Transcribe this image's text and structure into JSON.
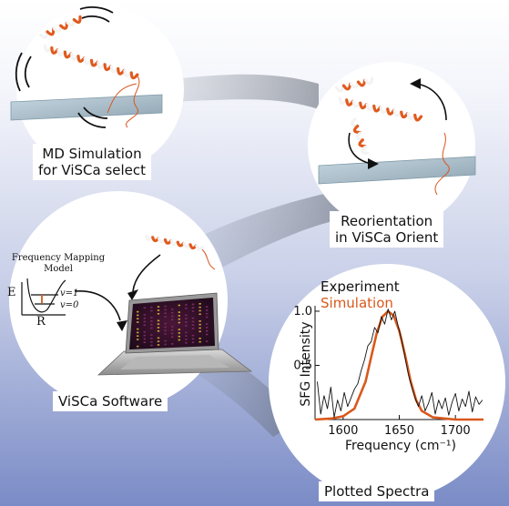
{
  "diagram": {
    "md_simulation": {
      "line1": "MD Simulation",
      "line2": "for ViSCa select"
    },
    "reorientation": {
      "line1": "Reorientation",
      "line2": "in ViSCa Orient"
    },
    "software": {
      "label": "ViSCa Software"
    },
    "spectra": {
      "label": "Plotted Spectra"
    },
    "frequency_mapping": {
      "title_line1": "Frequency Mapping",
      "title_line2": "Model",
      "energy_axis": "E",
      "coordinate_axis": "R",
      "level_v1": "v=1",
      "level_v0": "v=0"
    }
  },
  "colors": {
    "simulation": "#d9581c",
    "experiment": "#111111",
    "helix": "#e05a1e"
  },
  "chart_data": {
    "type": "line",
    "legend": [
      "Experiment",
      "Simulation"
    ],
    "xlabel": "Frequency (cm⁻¹)",
    "ylabel": "SFG Intensity",
    "x_ticks": [
      "1600",
      "1650",
      "1700"
    ],
    "y_ticks": [
      "1.0",
      "0.5"
    ],
    "xlim": [
      1575,
      1725
    ],
    "ylim": [
      0,
      1.05
    ],
    "series": [
      {
        "name": "Simulation",
        "color": "#d9581c",
        "x": [
          1575,
          1590,
          1600,
          1610,
          1620,
          1625,
          1630,
          1635,
          1640,
          1645,
          1650,
          1655,
          1660,
          1665,
          1670,
          1680,
          1690,
          1700,
          1725
        ],
        "y": [
          0.0,
          0.01,
          0.03,
          0.1,
          0.35,
          0.58,
          0.8,
          0.95,
          1.0,
          0.96,
          0.82,
          0.6,
          0.36,
          0.18,
          0.08,
          0.02,
          0.01,
          0.0,
          0.0
        ]
      },
      {
        "name": "Experiment",
        "color": "#111111",
        "x": [
          1577,
          1580,
          1583,
          1586,
          1589,
          1592,
          1595,
          1598,
          1601,
          1604,
          1607,
          1610,
          1613,
          1616,
          1619,
          1622,
          1625,
          1628,
          1631,
          1634,
          1637,
          1640,
          1643,
          1646,
          1649,
          1652,
          1655,
          1658,
          1661,
          1664,
          1667,
          1670,
          1673,
          1676,
          1679,
          1682,
          1685,
          1688,
          1691,
          1694,
          1697,
          1700,
          1703,
          1706,
          1709,
          1712,
          1715,
          1718,
          1721,
          1724
        ],
        "y": [
          0.35,
          0.05,
          0.22,
          0.1,
          0.3,
          0.02,
          0.18,
          0.08,
          0.25,
          0.12,
          0.2,
          0.28,
          0.33,
          0.45,
          0.55,
          0.68,
          0.72,
          0.85,
          0.8,
          0.95,
          0.88,
          1.02,
          0.92,
          1.0,
          0.86,
          0.74,
          0.58,
          0.42,
          0.3,
          0.2,
          0.12,
          0.22,
          0.08,
          0.15,
          0.25,
          0.05,
          0.18,
          0.1,
          0.2,
          0.04,
          0.16,
          0.24,
          0.08,
          0.19,
          0.12,
          0.26,
          0.07,
          0.21,
          0.14,
          0.18
        ]
      }
    ]
  }
}
